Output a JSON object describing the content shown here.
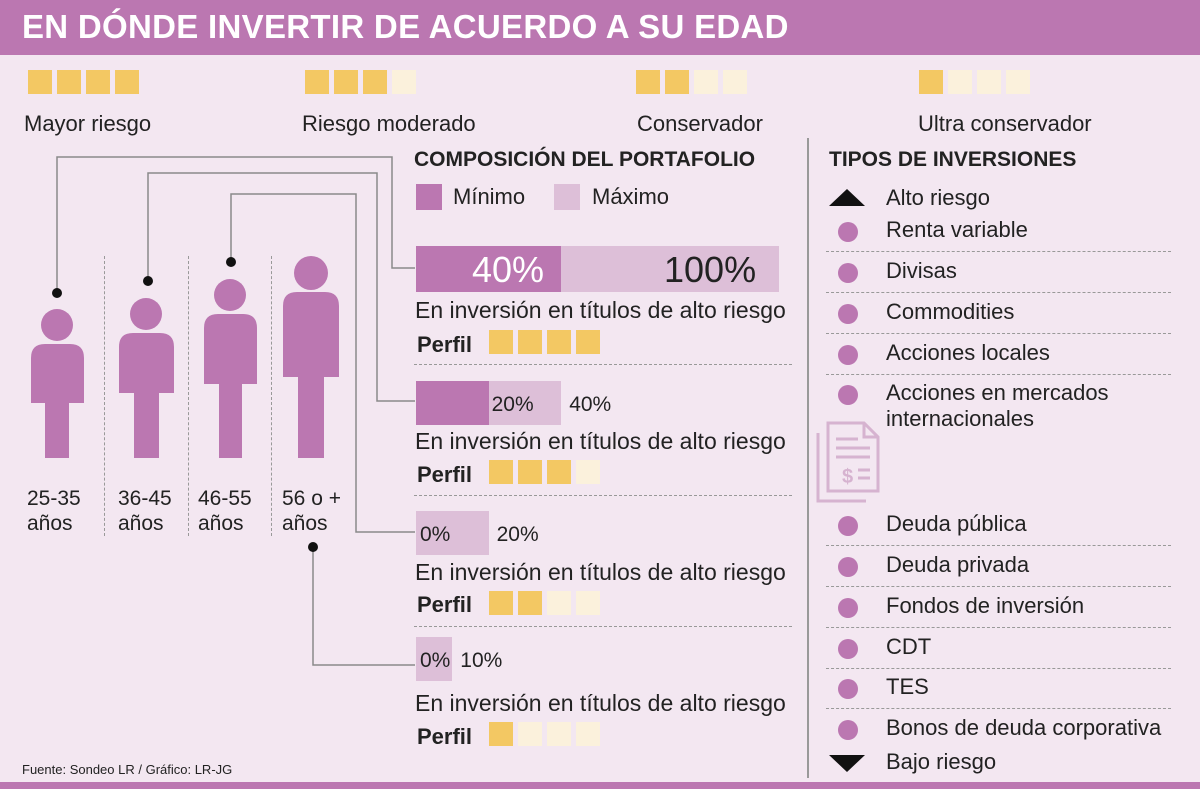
{
  "title": "EN DÓNDE INVERTIR DE ACUERDO A SU EDAD",
  "risk_legend": [
    {
      "label": "Mayor riesgo",
      "level": 4
    },
    {
      "label": "Riesgo moderado",
      "level": 3
    },
    {
      "label": "Conservador",
      "level": 2
    },
    {
      "label": "Ultra conservador",
      "level": 1
    }
  ],
  "portfolio": {
    "title": "COMPOSICIÓN DEL PORTAFOLIO",
    "legend_min": "Mínimo",
    "legend_max": "Máximo",
    "perfil_label": "Perfil",
    "description": "En inversión en títulos de alto riesgo"
  },
  "chart_data": {
    "type": "bar",
    "title": "COMPOSICIÓN DEL PORTAFOLIO",
    "xlabel": "",
    "ylabel": "",
    "xlim": [
      0,
      100
    ],
    "categories": [
      "25-35 años",
      "36-45 años",
      "46-55 años",
      "56 o + años"
    ],
    "series": [
      {
        "name": "Mínimo",
        "values": [
          40,
          20,
          0,
          0
        ],
        "labels": [
          "40%",
          "20%",
          "0%",
          "0%"
        ]
      },
      {
        "name": "Máximo",
        "values": [
          100,
          40,
          20,
          10
        ],
        "labels": [
          "100%",
          "40%",
          "20%",
          "10%"
        ]
      }
    ],
    "profile_level": [
      4,
      3,
      2,
      1
    ]
  },
  "ages": [
    {
      "line1": "25-35",
      "line2": "años"
    },
    {
      "line1": "36-45",
      "line2": "años"
    },
    {
      "line1": "46-55",
      "line2": "años"
    },
    {
      "line1": "56 o +",
      "line2": "años"
    }
  ],
  "types": {
    "title": "TIPOS DE INVERSIONES",
    "high": "Alto riesgo",
    "low": "Bajo riesgo",
    "items": [
      {
        "l1": "Renta variable"
      },
      {
        "l1": "Divisas"
      },
      {
        "l1": "Commodities"
      },
      {
        "l1": "Acciones locales"
      },
      {
        "l1": "Acciones en mercados",
        "l2": "internacionales"
      },
      {
        "l1": "Deuda pública"
      },
      {
        "l1": "Deuda privada"
      },
      {
        "l1": "Fondos de inversión"
      },
      {
        "l1": "CDT"
      },
      {
        "l1": "TES"
      },
      {
        "l1": "Bonos de deuda corporativa"
      }
    ]
  },
  "source": "Fuente: Sondeo LR / Gráfico: LR-JG",
  "colors": {
    "brand": "#bb77b1",
    "light_brand": "#ddbfd8",
    "background": "#f3e7f1",
    "gold": "#f3c863",
    "gold_light": "#fbf1dc"
  }
}
